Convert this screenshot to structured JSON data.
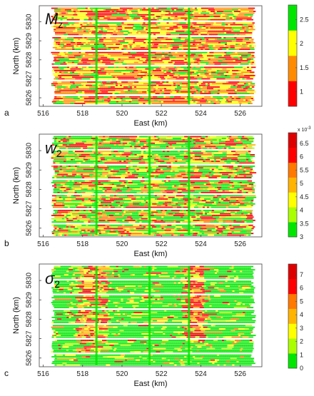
{
  "chart_data": [
    {
      "type": "heatmap",
      "panel_letter": "a",
      "title": "M_z",
      "xlabel": "East (km)",
      "ylabel": "North (km)",
      "x_ticks": [
        "516",
        "518",
        "520",
        "522",
        "524",
        "526"
      ],
      "y_ticks": [
        "5826",
        "5827",
        "5828",
        "5829",
        "5830"
      ],
      "xlim": [
        515.8,
        527.1
      ],
      "ylim": [
        5825.55,
        5830.85
      ],
      "colorbar": {
        "colors": [
          "#ff0000",
          "#ff8c00",
          "#ffff00",
          "#00e600"
        ],
        "tick_labels": [
          "1",
          "1.5",
          "2",
          "2.5"
        ],
        "tick_values": [
          1,
          1.5,
          2,
          2.5
        ],
        "range": [
          0.7,
          2.8
        ],
        "exponent_label": ""
      },
      "survey_area": {
        "x": [
          516.5,
          526.6
        ],
        "y": [
          5825.65,
          5830.75
        ]
      },
      "tie_lines_east_km": [
        518.7,
        521.4,
        523.4
      ],
      "palette_weights": [
        0.3,
        0.3,
        0.25,
        0.15
      ],
      "tie_line_color_index": 3,
      "anomaly_zones": []
    },
    {
      "type": "heatmap",
      "panel_letter": "b",
      "title": "w_2",
      "xlabel": "East (km)",
      "ylabel": "North (km)",
      "x_ticks": [
        "516",
        "518",
        "520",
        "522",
        "524",
        "526"
      ],
      "y_ticks": [
        "5826",
        "5827",
        "5828",
        "5829",
        "5830"
      ],
      "xlim": [
        515.8,
        527.1
      ],
      "ylim": [
        5825.55,
        5830.85
      ],
      "colorbar": {
        "colors": [
          "#00e600",
          "#aaff00",
          "#ffff00",
          "#ffb400",
          "#ff7800",
          "#ff0000",
          "#dd0000"
        ],
        "tick_labels": [
          "3",
          "3.5",
          "4",
          "4.5",
          "5",
          "5.5",
          "6",
          "6.5"
        ],
        "tick_values": [
          3,
          3.5,
          4,
          4.5,
          5,
          5.5,
          6,
          6.5
        ],
        "range": [
          3,
          6.9
        ],
        "exponent_label": "x 10^-3"
      },
      "survey_area": {
        "x": [
          516.5,
          526.6
        ],
        "y": [
          5825.65,
          5830.75
        ]
      },
      "tie_lines_east_km": [
        518.7,
        521.4,
        523.4
      ],
      "palette_weights": [
        0.35,
        0.12,
        0.1,
        0.1,
        0.1,
        0.18,
        0.05
      ],
      "tie_line_color_index": 0,
      "anomaly_zones": []
    },
    {
      "type": "heatmap",
      "panel_letter": "c",
      "title": "σ_2",
      "xlabel": "East (km)",
      "ylabel": "North (km)",
      "x_ticks": [
        "516",
        "518",
        "520",
        "522",
        "524",
        "526"
      ],
      "y_ticks": [
        "5826",
        "5827",
        "5828",
        "5829",
        "5830"
      ],
      "xlim": [
        515.8,
        527.1
      ],
      "ylim": [
        5825.55,
        5830.85
      ],
      "colorbar": {
        "colors": [
          "#00e600",
          "#aaff00",
          "#ffff00",
          "#ffb400",
          "#ff7800",
          "#ff0000",
          "#dd0000"
        ],
        "tick_labels": [
          "0",
          "1",
          "2",
          "3",
          "4",
          "5",
          "6",
          "7"
        ],
        "tick_values": [
          0,
          1,
          2,
          3,
          4,
          5,
          6,
          7
        ],
        "range": [
          0,
          7.8
        ],
        "exponent_label": ""
      },
      "survey_area": {
        "x": [
          516.5,
          526.6
        ],
        "y": [
          5825.65,
          5830.75
        ]
      },
      "tie_lines_east_km": [
        518.7,
        521.4,
        523.4
      ],
      "palette_weights": [
        0.78,
        0.07,
        0.07,
        0.03,
        0.02,
        0.02,
        0.01
      ],
      "tie_line_color_index": 0,
      "anomaly_zones": [
        {
          "x_start": 517.6,
          "x_end": 519.2,
          "y_start": 5826.3,
          "y_end": 5830.75,
          "palette_weights": [
            0.1,
            0.12,
            0.15,
            0.15,
            0.15,
            0.23,
            0.1
          ]
        },
        {
          "x_start": 523.0,
          "x_end": 524.1,
          "y_start": 5826.8,
          "y_end": 5830.75,
          "palette_weights": [
            0.03,
            0.05,
            0.1,
            0.1,
            0.2,
            0.35,
            0.17
          ]
        }
      ]
    }
  ]
}
